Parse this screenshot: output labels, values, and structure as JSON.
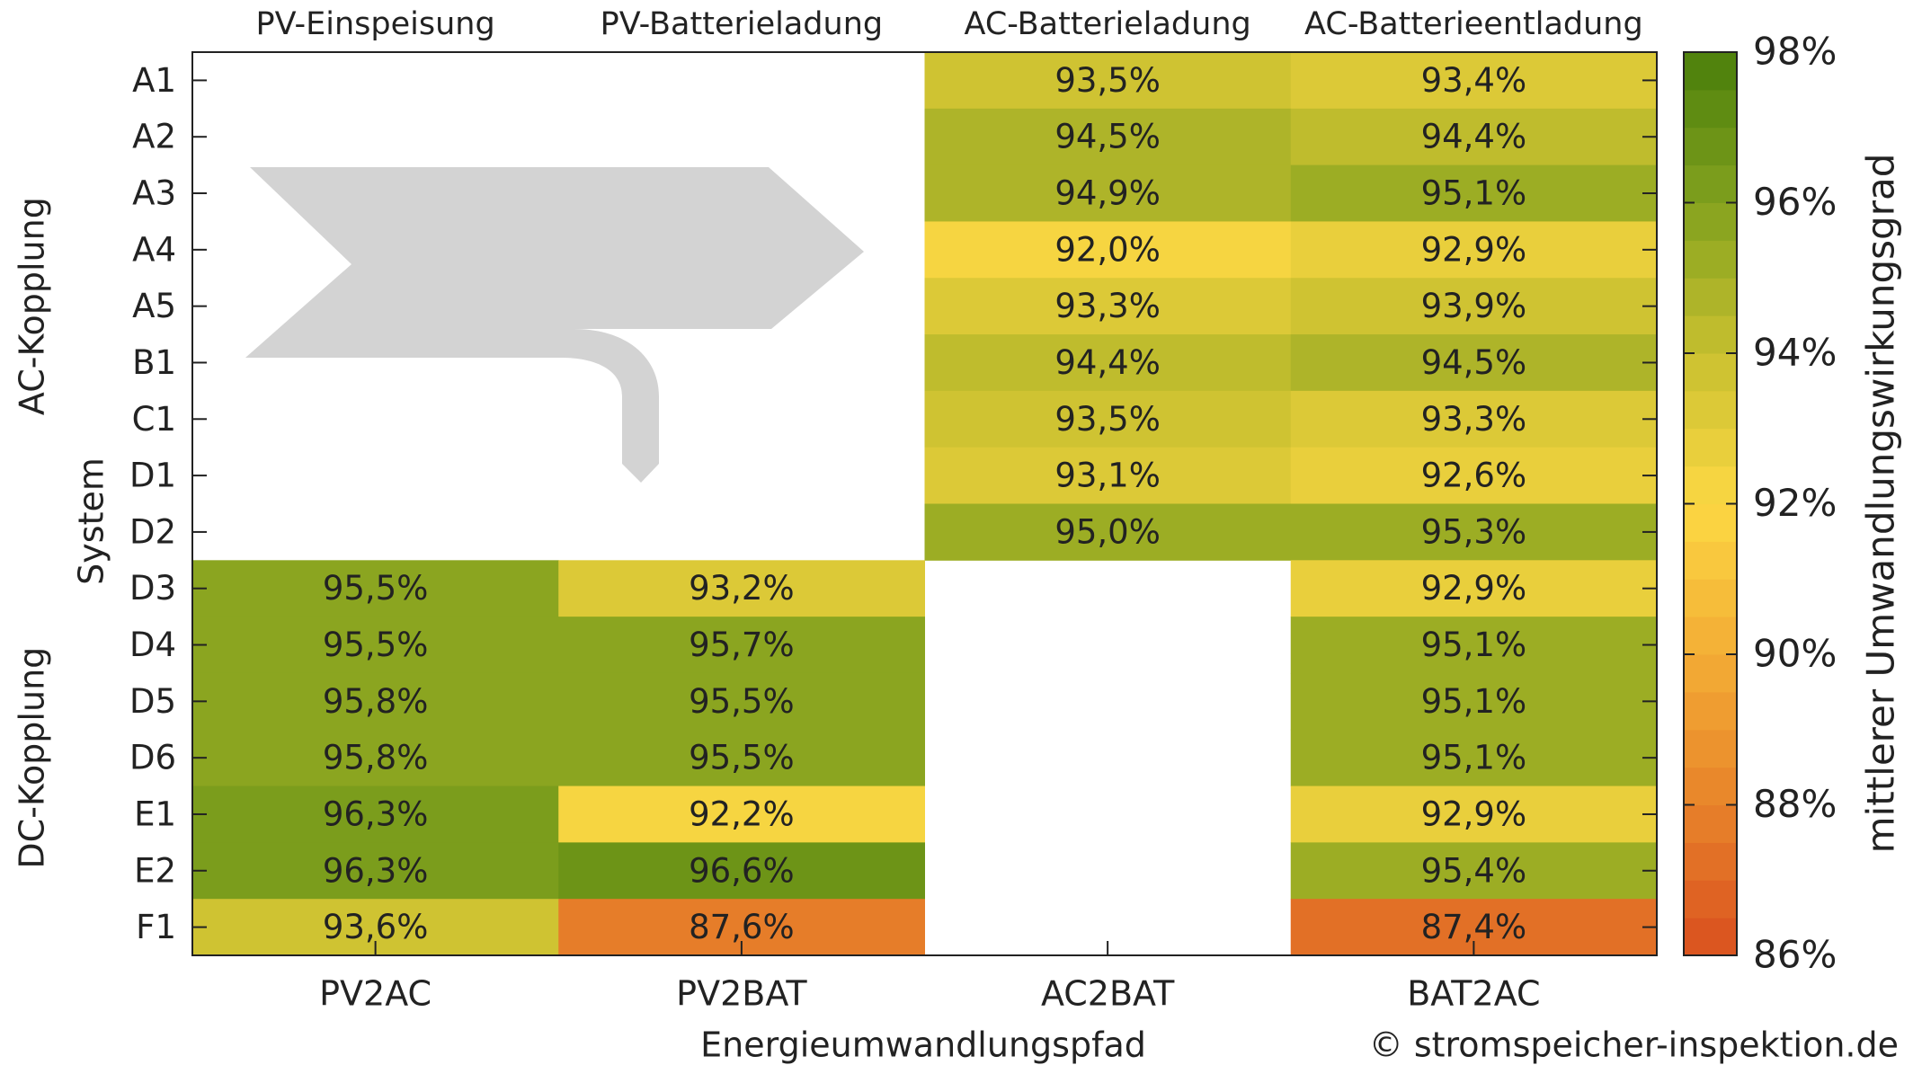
{
  "chart_data": {
    "type": "heatmap",
    "x_label": "Energieumwandlungspfad",
    "y_label": "System",
    "colorbar_label": "mittlerer Umwandlungswirkungsgrad",
    "credit": "© stromspeicher-inspektion.de",
    "categories": [
      "PV2AC",
      "PV2BAT",
      "AC2BAT",
      "BAT2AC"
    ],
    "category_titles": [
      "PV-Einspeisung",
      "PV-Batterieladung",
      "AC-Batterieladung",
      "AC-Batterieentladung"
    ],
    "rows": [
      "A1",
      "A2",
      "A3",
      "A4",
      "A5",
      "B1",
      "C1",
      "D1",
      "D2",
      "D3",
      "D4",
      "D5",
      "D6",
      "E1",
      "E2",
      "F1"
    ],
    "groups": [
      {
        "name": "AC-Kopplung",
        "from": "A1",
        "to": "D2"
      },
      {
        "name": "DC-Kopplung",
        "from": "D3",
        "to": "F1"
      }
    ],
    "values": [
      [
        null,
        null,
        93.5,
        93.4
      ],
      [
        null,
        null,
        94.5,
        94.4
      ],
      [
        null,
        null,
        94.9,
        95.1
      ],
      [
        null,
        null,
        92.0,
        92.9
      ],
      [
        null,
        null,
        93.3,
        93.9
      ],
      [
        null,
        null,
        94.4,
        94.5
      ],
      [
        null,
        null,
        93.5,
        93.3
      ],
      [
        null,
        null,
        93.1,
        92.6
      ],
      [
        null,
        null,
        95.0,
        95.3
      ],
      [
        95.5,
        93.2,
        null,
        92.9
      ],
      [
        95.5,
        95.7,
        null,
        95.1
      ],
      [
        95.8,
        95.5,
        null,
        95.1
      ],
      [
        95.8,
        95.5,
        null,
        95.1
      ],
      [
        96.3,
        92.2,
        null,
        92.9
      ],
      [
        96.3,
        96.6,
        null,
        95.4
      ],
      [
        93.6,
        87.6,
        null,
        87.4
      ]
    ],
    "value_labels": [
      [
        null,
        null,
        "93,5%",
        "93,4%"
      ],
      [
        null,
        null,
        "94,5%",
        "94,4%"
      ],
      [
        null,
        null,
        "94,9%",
        "95,1%"
      ],
      [
        null,
        null,
        "92,0%",
        "92,9%"
      ],
      [
        null,
        null,
        "93,3%",
        "93,9%"
      ],
      [
        null,
        null,
        "94,4%",
        "94,5%"
      ],
      [
        null,
        null,
        "93,5%",
        "93,3%"
      ],
      [
        null,
        null,
        "93,1%",
        "92,6%"
      ],
      [
        null,
        null,
        "95,0%",
        "95,3%"
      ],
      [
        "95,5%",
        "93,2%",
        null,
        "92,9%"
      ],
      [
        "95,5%",
        "95,7%",
        null,
        "95,1%"
      ],
      [
        "95,8%",
        "95,5%",
        null,
        "95,1%"
      ],
      [
        "95,8%",
        "95,5%",
        null,
        "95,1%"
      ],
      [
        "96,3%",
        "92,2%",
        null,
        "92,9%"
      ],
      [
        "96,3%",
        "96,6%",
        null,
        "95,4%"
      ],
      [
        "93,6%",
        "87,6%",
        null,
        "87,4%"
      ]
    ],
    "clim": [
      86,
      98
    ],
    "cticks": [
      {
        "value": 86,
        "label": "86%"
      },
      {
        "value": 88,
        "label": "88%"
      },
      {
        "value": 90,
        "label": "90%"
      },
      {
        "value": 92,
        "label": "92%"
      },
      {
        "value": 94,
        "label": "94%"
      },
      {
        "value": 96,
        "label": "96%"
      },
      {
        "value": 98,
        "label": "98%"
      }
    ],
    "colormap": [
      "#d9501e",
      "#e8832a",
      "#f3ad35",
      "#fcd843",
      "#c8c02f",
      "#82a11e",
      "#4a7f0a"
    ],
    "colormap_step": 0.5,
    "credit_color": "#7ab317"
  }
}
